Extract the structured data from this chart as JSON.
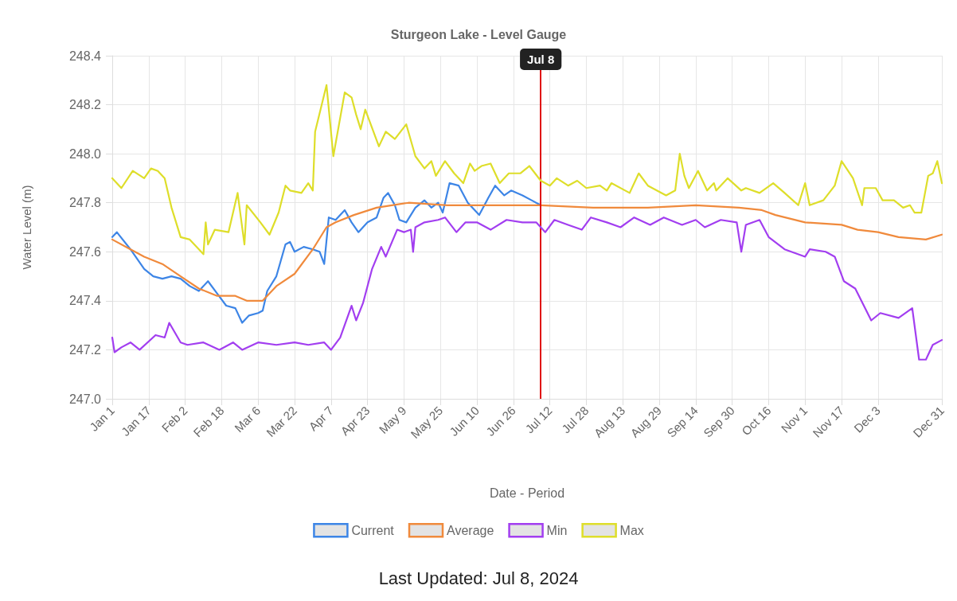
{
  "chart_data": {
    "type": "line",
    "title": "Sturgeon Lake - Level Gauge",
    "xlabel": "Date - Period",
    "ylabel": "Water Level (m)",
    "annotations": [
      "Last Updated: Jul 8, 2024"
    ],
    "xlim": [
      "--01-01",
      "--12-31"
    ],
    "xticks": [
      {
        "value": "--01-01",
        "label": "Jan 1"
      },
      {
        "value": "--01-17",
        "label": "Jan 17"
      },
      {
        "value": "--02-02",
        "label": "Feb 2"
      },
      {
        "value": "--02-18",
        "label": "Feb 18"
      },
      {
        "value": "--03-06",
        "label": "Mar 6"
      },
      {
        "value": "--03-22",
        "label": "Mar 22"
      },
      {
        "value": "--04-07",
        "label": "Apr 7"
      },
      {
        "value": "--04-23",
        "label": "Apr 23"
      },
      {
        "value": "--05-09",
        "label": "May 9"
      },
      {
        "value": "--05-25",
        "label": "May 25"
      },
      {
        "value": "--06-10",
        "label": "Jun 10"
      },
      {
        "value": "--06-26",
        "label": "Jun 26"
      },
      {
        "value": "--07-12",
        "label": "Jul 12"
      },
      {
        "value": "--07-28",
        "label": "Jul 28"
      },
      {
        "value": "--08-13",
        "label": "Aug 13"
      },
      {
        "value": "--08-29",
        "label": "Aug 29"
      },
      {
        "value": "--09-14",
        "label": "Sep 14"
      },
      {
        "value": "--09-30",
        "label": "Sep 30"
      },
      {
        "value": "--10-16",
        "label": "Oct 16"
      },
      {
        "value": "--11-01",
        "label": "Nov 1"
      },
      {
        "value": "--11-17",
        "label": "Nov 17"
      },
      {
        "value": "--12-03",
        "label": "Dec 3"
      },
      {
        "value": "--12-31",
        "label": "Dec 31"
      }
    ],
    "ylim": [
      247.0,
      248.4
    ],
    "yticks": [
      {
        "value": 247.0,
        "label": "247.0"
      },
      247.2,
      247.4,
      247.6,
      247.8,
      {
        "value": 248.0,
        "label": "248.0"
      },
      248.2,
      248.4
    ],
    "grid": true,
    "legend": "bottom",
    "marker": "none",
    "line_style": "solid",
    "ref_lines": [
      {
        "axis": "x",
        "value": "--07-08",
        "label": "Jul 8",
        "color": "#e01010"
      }
    ],
    "series": [
      {
        "name": "Current",
        "color": "#3d85e6",
        "x": [
          "--01-01",
          "--01-03",
          "--01-09",
          "--01-15",
          "--01-19",
          "--01-23",
          "--01-27",
          "--01-31",
          "--02-04",
          "--02-08",
          "--02-12",
          "--02-16",
          "--02-20",
          "--02-24",
          "--02-27",
          "--03-02",
          "--03-06",
          "--03-08",
          "--03-10",
          "--03-14",
          "--03-18",
          "--03-20",
          "--03-22",
          "--03-26",
          "--03-30",
          "--04-02",
          "--04-04",
          "--04-06",
          "--04-09",
          "--04-13",
          "--04-16",
          "--04-19",
          "--04-23",
          "--04-27",
          "--04-30",
          "--05-02",
          "--05-05",
          "--05-07",
          "--05-10",
          "--05-14",
          "--05-18",
          "--05-21",
          "--05-24",
          "--05-26",
          "--05-29",
          "--06-02",
          "--06-06",
          "--06-11",
          "--06-15",
          "--06-18",
          "--06-22",
          "--06-25",
          "--06-30",
          "--07-04",
          "--07-08"
        ],
        "values": [
          247.66,
          247.68,
          247.61,
          247.53,
          247.5,
          247.49,
          247.5,
          247.49,
          247.46,
          247.44,
          247.48,
          247.43,
          247.38,
          247.37,
          247.31,
          247.34,
          247.35,
          247.36,
          247.44,
          247.5,
          247.63,
          247.64,
          247.6,
          247.62,
          247.61,
          247.6,
          247.55,
          247.74,
          247.73,
          247.77,
          247.72,
          247.68,
          247.72,
          247.74,
          247.82,
          247.84,
          247.79,
          247.73,
          247.72,
          247.78,
          247.81,
          247.78,
          247.8,
          247.76,
          247.88,
          247.87,
          247.8,
          247.75,
          247.82,
          247.87,
          247.83,
          247.85,
          247.83,
          247.81,
          247.79
        ]
      },
      {
        "name": "Average",
        "color": "#f08a3c",
        "x": [
          "--01-01",
          "--01-09",
          "--01-15",
          "--01-23",
          "--01-31",
          "--02-08",
          "--02-16",
          "--02-24",
          "--03-01",
          "--03-08",
          "--03-14",
          "--03-22",
          "--03-30",
          "--04-05",
          "--04-09",
          "--04-17",
          "--04-27",
          "--05-11",
          "--05-28",
          "--06-21",
          "--07-08",
          "--07-31",
          "--08-24",
          "--09-14",
          "--10-03",
          "--10-13",
          "--10-19",
          "--11-01",
          "--11-17",
          "--11-24",
          "--12-03",
          "--12-12",
          "--12-24",
          "--12-31"
        ],
        "values": [
          247.65,
          247.61,
          247.58,
          247.55,
          247.5,
          247.45,
          247.42,
          247.42,
          247.4,
          247.4,
          247.46,
          247.51,
          247.61,
          247.7,
          247.72,
          247.75,
          247.78,
          247.8,
          247.79,
          247.79,
          247.79,
          247.78,
          247.78,
          247.79,
          247.78,
          247.77,
          247.75,
          247.72,
          247.71,
          247.69,
          247.68,
          247.66,
          247.65,
          247.67
        ]
      },
      {
        "name": "Min",
        "color": "#a23ef0",
        "x": [
          "--01-01",
          "--01-02",
          "--01-05",
          "--01-09",
          "--01-13",
          "--01-20",
          "--01-24",
          "--01-26",
          "--01-31",
          "--02-03",
          "--02-10",
          "--02-17",
          "--02-23",
          "--02-27",
          "--03-06",
          "--03-14",
          "--03-22",
          "--03-28",
          "--04-04",
          "--04-07",
          "--04-11",
          "--04-16",
          "--04-18",
          "--04-21",
          "--04-25",
          "--04-29",
          "--05-01",
          "--05-06",
          "--05-09",
          "--05-12",
          "--05-13",
          "--05-14",
          "--05-18",
          "--05-24",
          "--05-27",
          "--06-01",
          "--06-05",
          "--06-10",
          "--06-16",
          "--06-23",
          "--06-30",
          "--07-06",
          "--07-10",
          "--07-14",
          "--07-20",
          "--07-26",
          "--07-30",
          "--08-06",
          "--08-12",
          "--08-18",
          "--08-25",
          "--08-31",
          "--09-08",
          "--09-14",
          "--09-18",
          "--09-25",
          "--10-02",
          "--10-04",
          "--10-06",
          "--10-12",
          "--10-16",
          "--10-23",
          "--11-01",
          "--11-03",
          "--11-10",
          "--11-14",
          "--11-18",
          "--11-23",
          "--11-30",
          "--12-04",
          "--12-12",
          "--12-18",
          "--12-21",
          "--12-24",
          "--12-27",
          "--12-31"
        ],
        "values": [
          247.25,
          247.19,
          247.21,
          247.23,
          247.2,
          247.26,
          247.25,
          247.31,
          247.23,
          247.22,
          247.23,
          247.2,
          247.23,
          247.2,
          247.23,
          247.22,
          247.23,
          247.22,
          247.23,
          247.2,
          247.25,
          247.38,
          247.32,
          247.39,
          247.53,
          247.62,
          247.58,
          247.69,
          247.68,
          247.69,
          247.6,
          247.7,
          247.72,
          247.73,
          247.74,
          247.68,
          247.72,
          247.72,
          247.69,
          247.73,
          247.72,
          247.72,
          247.68,
          247.73,
          247.71,
          247.69,
          247.74,
          247.72,
          247.7,
          247.74,
          247.71,
          247.74,
          247.71,
          247.73,
          247.7,
          247.73,
          247.72,
          247.6,
          247.71,
          247.73,
          247.66,
          247.61,
          247.58,
          247.61,
          247.6,
          247.58,
          247.48,
          247.45,
          247.32,
          247.35,
          247.33,
          247.37,
          247.16,
          247.16,
          247.22,
          247.24
        ]
      },
      {
        "name": "Max",
        "color": "#dede2a",
        "x": [
          "--01-01",
          "--01-05",
          "--01-10",
          "--01-15",
          "--01-18",
          "--01-21",
          "--01-24",
          "--01-27",
          "--01-31",
          "--02-04",
          "--02-10",
          "--02-11",
          "--02-12",
          "--02-15",
          "--02-21",
          "--02-25",
          "--02-28",
          "--03-01",
          "--03-07",
          "--03-11",
          "--03-15",
          "--03-18",
          "--03-20",
          "--03-25",
          "--03-28",
          "--03-30",
          "--03-31",
          "--04-05",
          "--04-08",
          "--04-13",
          "--04-16",
          "--04-18",
          "--04-20",
          "--04-22",
          "--04-28",
          "--05-01",
          "--05-05",
          "--05-10",
          "--05-14",
          "--05-18",
          "--05-21",
          "--05-23",
          "--05-27",
          "--05-31",
          "--06-04",
          "--06-07",
          "--06-09",
          "--06-12",
          "--06-16",
          "--06-20",
          "--06-24",
          "--06-29",
          "--07-03",
          "--07-08",
          "--07-12",
          "--07-15",
          "--07-20",
          "--07-24",
          "--07-28",
          "--08-03",
          "--08-06",
          "--08-08",
          "--08-16",
          "--08-20",
          "--08-24",
          "--09-01",
          "--09-05",
          "--09-07",
          "--09-09",
          "--09-11",
          "--09-15",
          "--09-19",
          "--09-22",
          "--09-23",
          "--09-28",
          "--10-04",
          "--10-06",
          "--10-12",
          "--10-18",
          "--10-23",
          "--10-29",
          "--11-01",
          "--11-03",
          "--11-09",
          "--11-14",
          "--11-17",
          "--11-22",
          "--11-26",
          "--11-27",
          "--12-02",
          "--12-05",
          "--12-10",
          "--12-14",
          "--12-17",
          "--12-19",
          "--12-22",
          "--12-25",
          "--12-27",
          "--12-29",
          "--12-31"
        ],
        "values": [
          247.9,
          247.86,
          247.93,
          247.9,
          247.94,
          247.93,
          247.9,
          247.78,
          247.66,
          247.65,
          247.59,
          247.72,
          247.63,
          247.69,
          247.68,
          247.84,
          247.63,
          247.79,
          247.72,
          247.67,
          247.76,
          247.87,
          247.85,
          247.84,
          247.88,
          247.85,
          248.09,
          248.28,
          247.99,
          248.25,
          248.23,
          248.16,
          248.1,
          248.18,
          248.03,
          248.09,
          248.06,
          248.12,
          247.99,
          247.94,
          247.97,
          247.91,
          247.97,
          247.92,
          247.88,
          247.96,
          247.93,
          247.95,
          247.96,
          247.88,
          247.92,
          247.92,
          247.95,
          247.89,
          247.87,
          247.9,
          247.87,
          247.89,
          247.86,
          247.87,
          247.85,
          247.88,
          247.84,
          247.92,
          247.87,
          247.83,
          247.85,
          248.0,
          247.91,
          247.86,
          247.93,
          247.85,
          247.88,
          247.85,
          247.9,
          247.85,
          247.86,
          247.84,
          247.88,
          247.84,
          247.79,
          247.88,
          247.79,
          247.81,
          247.87,
          247.97,
          247.9,
          247.79,
          247.86,
          247.86,
          247.81,
          247.81,
          247.78,
          247.79,
          247.76,
          247.76,
          247.91,
          247.92,
          247.97,
          247.88
        ]
      }
    ]
  }
}
